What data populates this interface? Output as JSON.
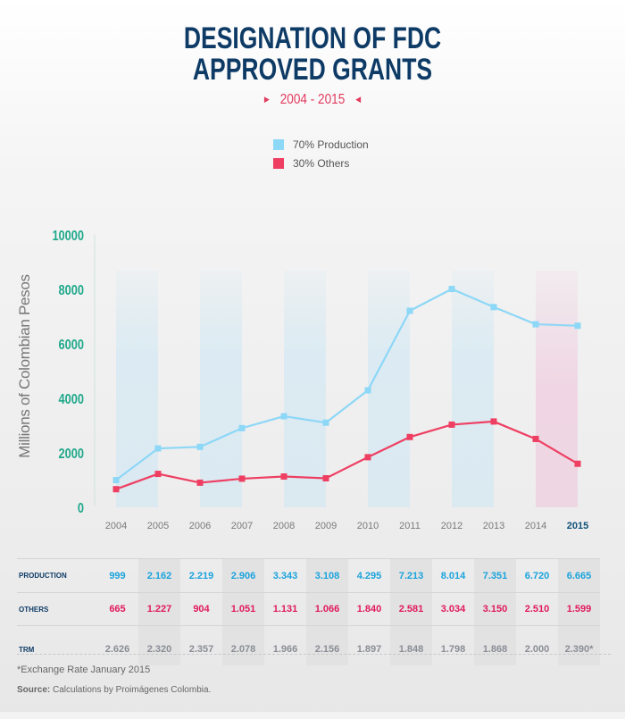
{
  "header": {
    "title_line1": "DESIGNATION OF FDC",
    "title_line2": "APPROVED GRANTS",
    "subtitle": "2004 - 2015",
    "arrow_left": "▶",
    "arrow_right": "◀"
  },
  "legend": [
    {
      "label": "70% Production",
      "color": "#8dd7f7"
    },
    {
      "label": "30% Others",
      "color": "#ee3f62"
    }
  ],
  "chart_data": {
    "type": "line",
    "title": "Designation of FDC Approved Grants 2004 - 2015",
    "xlabel": "",
    "ylabel": "Millions of Colombian Pesos",
    "ylim": [
      0,
      10000
    ],
    "yticks": [
      0,
      2000,
      4000,
      6000,
      8000,
      10000
    ],
    "categories": [
      "2004",
      "2005",
      "2006",
      "2007",
      "2008",
      "2009",
      "2010",
      "2011",
      "2012",
      "2013",
      "2014",
      "2015"
    ],
    "highlight_category": "2015",
    "series": [
      {
        "name": "70% Production",
        "color": "#8dd7f7",
        "values": [
          999,
          2162,
          2219,
          2906,
          3343,
          3108,
          4295,
          7213,
          8014,
          7351,
          6720,
          6665
        ]
      },
      {
        "name": "30% Others",
        "color": "#ee3f62",
        "values": [
          665,
          1227,
          904,
          1051,
          1131,
          1066,
          1840,
          2581,
          3034,
          3150,
          2510,
          1599
        ]
      }
    ],
    "legend_position": "top-center",
    "grid": false
  },
  "table": {
    "rows": [
      {
        "label": "PRODUCTION",
        "values": [
          "999",
          "2.162",
          "2.219",
          "2.906",
          "3.343",
          "3.108",
          "4.295",
          "7.213",
          "8.014",
          "7.351",
          "6.720",
          "6.665"
        ]
      },
      {
        "label": "OTHERS",
        "values": [
          "665",
          "1.227",
          "904",
          "1.051",
          "1.131",
          "1.066",
          "1.840",
          "2.581",
          "3.034",
          "3.150",
          "2.510",
          "1.599"
        ]
      },
      {
        "label": "TRM",
        "values": [
          "2.626",
          "2.320",
          "2.357",
          "2.078",
          "1.966",
          "2.156",
          "1.897",
          "1.848",
          "1.798",
          "1.868",
          "2.000",
          "2.390*"
        ]
      }
    ]
  },
  "footer": {
    "note": "*Exchange Rate January 2015",
    "source_label": "Source:",
    "source_text": " Calculations by Proimágenes Colombia."
  },
  "colors": {
    "title": "#0e3b66",
    "accent_red": "#e33a5e",
    "axis_ticks": "#1fa88a",
    "production": "#8dd7f7",
    "others": "#ee3f62",
    "band_blue": "#dcebf3",
    "band_pink": "#f0d6e4"
  }
}
